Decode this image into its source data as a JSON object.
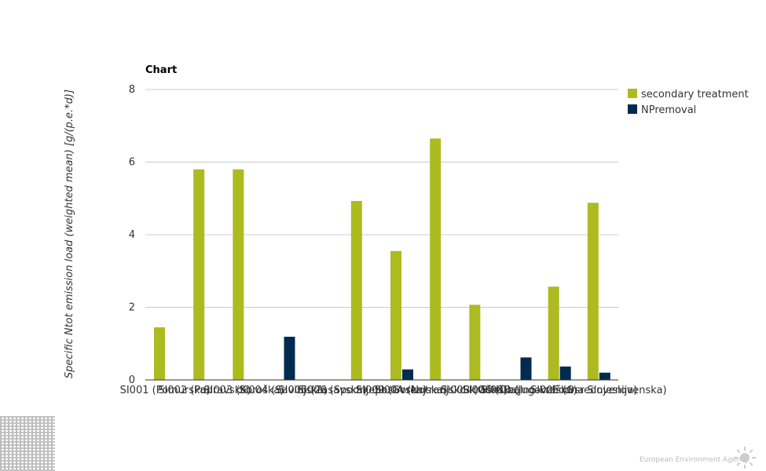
{
  "chart_data": {
    "type": "bar",
    "title": "Chart",
    "ylabel": "Specific Ntot emission load (weighted mean) [g/(p.e.*d)]",
    "xlabel": "",
    "ylim": [
      0,
      8
    ],
    "yticks": [
      "0",
      "2",
      "4",
      "6",
      "8"
    ],
    "grid": true,
    "legend_position": "right",
    "categories": [
      "SI001 (Pomurska)",
      "SI002 (Podravska)",
      "SI003 (Koroška)",
      "SI004 (Savinjska)",
      "SI005 (Zasavska)",
      "SI006 (Spodnjeposavska)",
      "SI009 (Gorenjska)",
      "SI00A (Notranjsko-kraška)",
      "SI00B (Goriška)",
      "SI00C (Obalno-kraška)",
      "SI00D (Jugovzhodna Slovenija)",
      "SI00E (Osrednjeslovenska)"
    ],
    "series": [
      {
        "name": "secondary treatment",
        "color": "#adbb21",
        "values": [
          1.45,
          5.8,
          5.8,
          null,
          null,
          4.93,
          3.55,
          6.65,
          2.07,
          null,
          2.57,
          4.88
        ]
      },
      {
        "name": "NPremoval",
        "color": "#002b4f",
        "values": [
          null,
          null,
          null,
          1.19,
          null,
          null,
          0.29,
          null,
          null,
          0.62,
          0.37,
          0.2
        ]
      }
    ]
  },
  "footer": {
    "brand": "European Environment Agency",
    "logo_icon": "eea-sun-icon"
  }
}
